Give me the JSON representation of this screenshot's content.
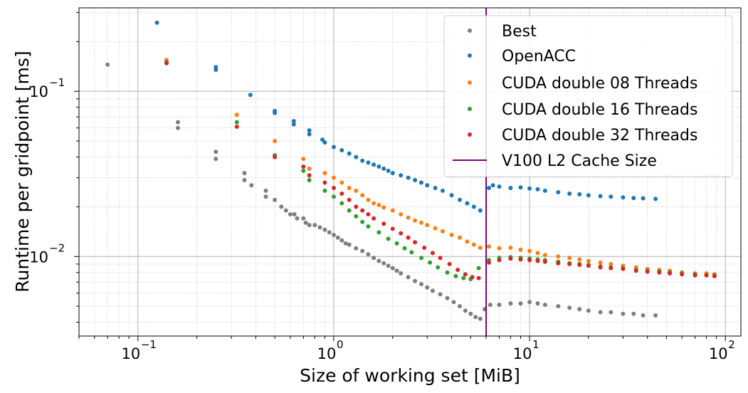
{
  "chart_data": {
    "type": "scatter",
    "title": "",
    "xlabel": "Size of working set [MiB]",
    "ylabel": "Runtime per gridpoint [ms]",
    "xscale": "log",
    "yscale": "log",
    "xlim": [
      0.05,
      120
    ],
    "ylim": [
      0.0033,
      0.32
    ],
    "grid": "major and minor",
    "legend_position": "top-right",
    "x_ticks": [
      {
        "base": "10",
        "exp": "−1",
        "value": 0.1
      },
      {
        "base": "10",
        "exp": "0",
        "value": 1
      },
      {
        "base": "10",
        "exp": "1",
        "value": 10
      },
      {
        "base": "10",
        "exp": "2",
        "value": 100
      }
    ],
    "y_ticks": [
      {
        "base": "10",
        "exp": "−2",
        "value": 0.01
      },
      {
        "base": "10",
        "exp": "−1",
        "value": 0.1
      }
    ],
    "vline": {
      "name": "V100 L2 Cache Size",
      "x": 6.0,
      "color": "#800080"
    },
    "series": [
      {
        "name": "Best",
        "color": "#7f7f7f",
        "points": [
          [
            0.07,
            0.145
          ],
          [
            0.16,
            0.065
          ],
          [
            0.16,
            0.06
          ],
          [
            0.25,
            0.043
          ],
          [
            0.25,
            0.039
          ],
          [
            0.35,
            0.032
          ],
          [
            0.35,
            0.029
          ],
          [
            0.38,
            0.027
          ],
          [
            0.45,
            0.025
          ],
          [
            0.45,
            0.023
          ],
          [
            0.5,
            0.022
          ],
          [
            0.54,
            0.02
          ],
          [
            0.57,
            0.019
          ],
          [
            0.6,
            0.018
          ],
          [
            0.63,
            0.018
          ],
          [
            0.65,
            0.017
          ],
          [
            0.7,
            0.017
          ],
          [
            0.72,
            0.016
          ],
          [
            0.75,
            0.0155
          ],
          [
            0.8,
            0.0155
          ],
          [
            0.85,
            0.015
          ],
          [
            0.9,
            0.0145
          ],
          [
            0.95,
            0.014
          ],
          [
            1.0,
            0.0135
          ],
          [
            1.05,
            0.013
          ],
          [
            1.1,
            0.0125
          ],
          [
            1.15,
            0.012
          ],
          [
            1.2,
            0.0118
          ],
          [
            1.3,
            0.0112
          ],
          [
            1.4,
            0.0108
          ],
          [
            1.5,
            0.0103
          ],
          [
            1.6,
            0.0098
          ],
          [
            1.7,
            0.0094
          ],
          [
            1.8,
            0.0091
          ],
          [
            1.9,
            0.0088
          ],
          [
            2.0,
            0.0085
          ],
          [
            2.1,
            0.0082
          ],
          [
            2.2,
            0.0079
          ],
          [
            2.4,
            0.0075
          ],
          [
            2.6,
            0.0071
          ],
          [
            2.8,
            0.0068
          ],
          [
            3.0,
            0.0065
          ],
          [
            3.2,
            0.0062
          ],
          [
            3.5,
            0.0059
          ],
          [
            3.8,
            0.0056
          ],
          [
            4.1,
            0.0053
          ],
          [
            4.4,
            0.005
          ],
          [
            4.7,
            0.0047
          ],
          [
            5.0,
            0.0045
          ],
          [
            5.3,
            0.0043
          ],
          [
            5.6,
            0.0042
          ],
          [
            5.9,
            0.0048
          ],
          [
            6.3,
            0.0051
          ],
          [
            7,
            0.0051
          ],
          [
            8,
            0.0052
          ],
          [
            9,
            0.0052
          ],
          [
            10,
            0.0053
          ],
          [
            11,
            0.0052
          ],
          [
            12,
            0.0051
          ],
          [
            14,
            0.005
          ],
          [
            16,
            0.0049
          ],
          [
            18,
            0.0048
          ],
          [
            20,
            0.0047
          ],
          [
            23,
            0.0046
          ],
          [
            26,
            0.0046
          ],
          [
            30,
            0.0045
          ],
          [
            34,
            0.0045
          ],
          [
            38,
            0.0044
          ],
          [
            44,
            0.0044
          ]
        ]
      },
      {
        "name": "OpenACC",
        "color": "#1f77b4",
        "points": [
          [
            0.125,
            0.26
          ],
          [
            0.25,
            0.14
          ],
          [
            0.25,
            0.135
          ],
          [
            0.375,
            0.095
          ],
          [
            0.5,
            0.076
          ],
          [
            0.5,
            0.074
          ],
          [
            0.625,
            0.066
          ],
          [
            0.625,
            0.063
          ],
          [
            0.75,
            0.058
          ],
          [
            0.75,
            0.055
          ],
          [
            0.875,
            0.051
          ],
          [
            0.9,
            0.049
          ],
          [
            1.0,
            0.046
          ],
          [
            1.1,
            0.044
          ],
          [
            1.2,
            0.042
          ],
          [
            1.3,
            0.04
          ],
          [
            1.4,
            0.038
          ],
          [
            1.5,
            0.037
          ],
          [
            1.6,
            0.036
          ],
          [
            1.7,
            0.035
          ],
          [
            1.8,
            0.034
          ],
          [
            1.9,
            0.033
          ],
          [
            2.0,
            0.032
          ],
          [
            2.2,
            0.031
          ],
          [
            2.4,
            0.03
          ],
          [
            2.6,
            0.029
          ],
          [
            2.8,
            0.028
          ],
          [
            3.0,
            0.027
          ],
          [
            3.3,
            0.026
          ],
          [
            3.6,
            0.025
          ],
          [
            4.0,
            0.0235
          ],
          [
            4.4,
            0.022
          ],
          [
            4.8,
            0.021
          ],
          [
            5.2,
            0.02
          ],
          [
            5.6,
            0.019
          ],
          [
            6.2,
            0.026
          ],
          [
            6.5,
            0.027
          ],
          [
            7,
            0.0265
          ],
          [
            8,
            0.026
          ],
          [
            9,
            0.0262
          ],
          [
            10,
            0.0258
          ],
          [
            11,
            0.0255
          ],
          [
            12,
            0.025
          ],
          [
            14,
            0.0245
          ],
          [
            16,
            0.024
          ],
          [
            18,
            0.0238
          ],
          [
            20,
            0.0235
          ],
          [
            23,
            0.0232
          ],
          [
            26,
            0.023
          ],
          [
            30,
            0.0228
          ],
          [
            34,
            0.0226
          ],
          [
            38,
            0.0225
          ],
          [
            44,
            0.0223
          ]
        ]
      },
      {
        "name": "CUDA double 08 Threads",
        "color": "#ff7f0e",
        "points": [
          [
            0.14,
            0.155
          ],
          [
            0.32,
            0.072
          ],
          [
            0.5,
            0.05
          ],
          [
            0.7,
            0.039
          ],
          [
            0.75,
            0.034
          ],
          [
            0.9,
            0.032
          ],
          [
            1.0,
            0.03
          ],
          [
            1.1,
            0.028
          ],
          [
            1.2,
            0.026
          ],
          [
            1.3,
            0.025
          ],
          [
            1.4,
            0.0235
          ],
          [
            1.5,
            0.022
          ],
          [
            1.6,
            0.021
          ],
          [
            1.7,
            0.0205
          ],
          [
            1.8,
            0.0198
          ],
          [
            2.0,
            0.019
          ],
          [
            2.2,
            0.018
          ],
          [
            2.4,
            0.0172
          ],
          [
            2.6,
            0.0165
          ],
          [
            2.8,
            0.016
          ],
          [
            3.0,
            0.0155
          ],
          [
            3.3,
            0.0148
          ],
          [
            3.6,
            0.0142
          ],
          [
            4.0,
            0.0135
          ],
          [
            4.4,
            0.013
          ],
          [
            4.8,
            0.0123
          ],
          [
            5.2,
            0.0118
          ],
          [
            5.6,
            0.0113
          ],
          [
            6.2,
            0.0115
          ],
          [
            7,
            0.0112
          ],
          [
            8,
            0.0113
          ],
          [
            9,
            0.011
          ],
          [
            10,
            0.0108
          ],
          [
            11,
            0.0105
          ],
          [
            12,
            0.0102
          ],
          [
            14,
            0.01
          ],
          [
            16,
            0.0098
          ],
          [
            18,
            0.0096
          ],
          [
            20,
            0.0094
          ],
          [
            23,
            0.0092
          ],
          [
            26,
            0.009
          ],
          [
            30,
            0.0088
          ],
          [
            35,
            0.0086
          ],
          [
            40,
            0.0084
          ],
          [
            46,
            0.0083
          ],
          [
            52,
            0.0082
          ],
          [
            60,
            0.008
          ],
          [
            70,
            0.0079
          ],
          [
            80,
            0.0079
          ],
          [
            88,
            0.0078
          ]
        ]
      },
      {
        "name": "CUDA double 16 Threads",
        "color": "#2ca02c",
        "points": [
          [
            0.14,
            0.15
          ],
          [
            0.32,
            0.065
          ],
          [
            0.5,
            0.041
          ],
          [
            0.7,
            0.033
          ],
          [
            0.75,
            0.029
          ],
          [
            0.9,
            0.025
          ],
          [
            1.0,
            0.023
          ],
          [
            1.1,
            0.021
          ],
          [
            1.2,
            0.019
          ],
          [
            1.3,
            0.0175
          ],
          [
            1.4,
            0.0162
          ],
          [
            1.5,
            0.0152
          ],
          [
            1.7,
            0.014
          ],
          [
            1.9,
            0.0128
          ],
          [
            2.1,
            0.012
          ],
          [
            2.3,
            0.0112
          ],
          [
            2.5,
            0.0106
          ],
          [
            2.8,
            0.0098
          ],
          [
            3.1,
            0.0092
          ],
          [
            3.4,
            0.0086
          ],
          [
            3.8,
            0.008
          ],
          [
            4.2,
            0.0076
          ],
          [
            4.6,
            0.0074
          ],
          [
            5.0,
            0.0073
          ],
          [
            5.5,
            0.0085
          ],
          [
            6.2,
            0.0095
          ],
          [
            7,
            0.0098
          ],
          [
            8,
            0.0099
          ],
          [
            9,
            0.0098
          ],
          [
            10,
            0.0097
          ],
          [
            11,
            0.0096
          ],
          [
            12,
            0.0095
          ],
          [
            14,
            0.0093
          ],
          [
            16,
            0.0091
          ],
          [
            18,
            0.009
          ],
          [
            20,
            0.0089
          ],
          [
            23,
            0.0087
          ],
          [
            26,
            0.0086
          ],
          [
            30,
            0.0085
          ],
          [
            35,
            0.0083
          ],
          [
            40,
            0.0082
          ],
          [
            46,
            0.0081
          ],
          [
            52,
            0.008
          ],
          [
            60,
            0.0079
          ],
          [
            70,
            0.0078
          ],
          [
            80,
            0.0077
          ],
          [
            88,
            0.0077
          ]
        ]
      },
      {
        "name": "CUDA double 32 Threads",
        "color": "#d62728",
        "points": [
          [
            0.14,
            0.148
          ],
          [
            0.32,
            0.061
          ],
          [
            0.5,
            0.04
          ],
          [
            0.7,
            0.035
          ],
          [
            0.75,
            0.031
          ],
          [
            0.9,
            0.028
          ],
          [
            1.0,
            0.026
          ],
          [
            1.1,
            0.024
          ],
          [
            1.2,
            0.022
          ],
          [
            1.3,
            0.02
          ],
          [
            1.4,
            0.019
          ],
          [
            1.5,
            0.018
          ],
          [
            1.6,
            0.017
          ],
          [
            1.8,
            0.0158
          ],
          [
            2.0,
            0.0147
          ],
          [
            2.2,
            0.0138
          ],
          [
            2.4,
            0.013
          ],
          [
            2.6,
            0.0122
          ],
          [
            2.9,
            0.0113
          ],
          [
            3.2,
            0.0105
          ],
          [
            3.5,
            0.0098
          ],
          [
            3.9,
            0.009
          ],
          [
            4.3,
            0.0083
          ],
          [
            4.7,
            0.0078
          ],
          [
            5.1,
            0.0075
          ],
          [
            5.5,
            0.0074
          ],
          [
            6.2,
            0.0092
          ],
          [
            7,
            0.0095
          ],
          [
            8,
            0.0097
          ],
          [
            9,
            0.0096
          ],
          [
            10,
            0.0095
          ],
          [
            11,
            0.0094
          ],
          [
            12,
            0.0093
          ],
          [
            14,
            0.0091
          ],
          [
            16,
            0.009
          ],
          [
            18,
            0.0089
          ],
          [
            20,
            0.0088
          ],
          [
            23,
            0.0086
          ],
          [
            26,
            0.0085
          ],
          [
            30,
            0.0084
          ],
          [
            35,
            0.0082
          ],
          [
            40,
            0.0081
          ],
          [
            46,
            0.008
          ],
          [
            52,
            0.0079
          ],
          [
            60,
            0.0078
          ],
          [
            70,
            0.0077
          ],
          [
            80,
            0.0077
          ],
          [
            88,
            0.0076
          ]
        ]
      }
    ]
  }
}
